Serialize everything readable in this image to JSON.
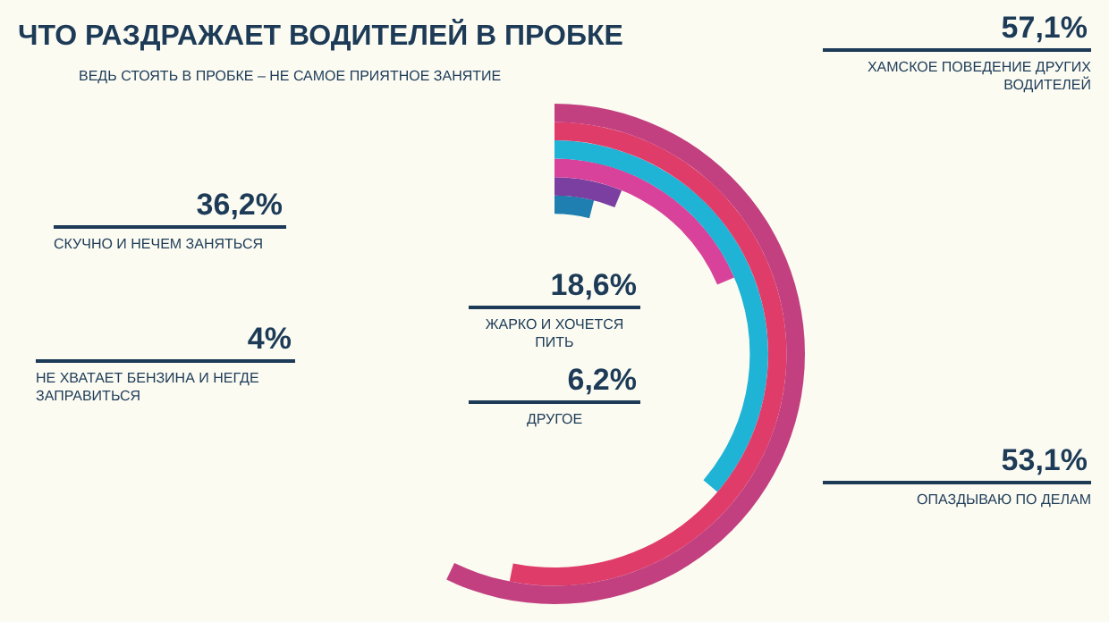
{
  "chart_data": {
    "type": "other",
    "title": "ЧТО РАЗДРАЖАЕТ ВОДИТЕЛЕЙ В ПРОБКЕ",
    "subtitle": "ВЕДЬ СТОЯТЬ В ПРОБКЕ – НЕ САМОЕ ПРИЯТНОЕ ЗАНЯТИЕ",
    "categories": [
      "ХАМСКОЕ ПОВЕДЕНИЕ ДРУГИХ ВОДИТЕЛЕЙ",
      "ОПАЗДЫВАЮ ПО ДЕЛАМ",
      "СКУЧНО И НЕЧЕМ ЗАНЯТЬСЯ",
      "ЖАРКО И ХОЧЕТСЯ ПИТЬ",
      "ДРУГОЕ",
      "НЕ ХВАТАЕТ БЕНЗИНА И НЕГДЕ ЗАПРАВИТЬСЯ"
    ],
    "values": [
      57.1,
      53.1,
      36.2,
      18.6,
      6.2,
      4
    ],
    "value_labels": [
      "57,1%",
      "53,1%",
      "36,2%",
      "18,6%",
      "6,2%",
      "4%"
    ],
    "colors": [
      "#c2407f",
      "#e03c6a",
      "#1fb3d6",
      "#d9429a",
      "#7a3fa0",
      "#1e7fb0"
    ]
  }
}
